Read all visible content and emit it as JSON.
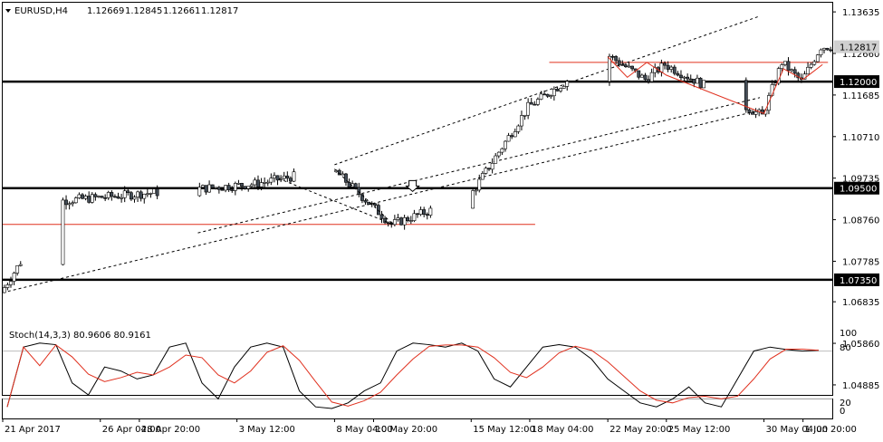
{
  "header": {
    "symbol": "EURUSD,H4",
    "open": "1.12669",
    "high": "1.12845",
    "low": "1.12661",
    "close": "1.12817"
  },
  "stoch": {
    "label": "Stoch(14,3,3) 80.9606 80.9161",
    "levels": [
      "100",
      "80",
      "20",
      "0"
    ]
  },
  "price_axis_ticks": [
    "1.13635",
    "1.12660",
    "1.11685",
    "1.10710",
    "1.09735",
    "1.08760",
    "1.07785",
    "1.06835",
    "1.05860",
    "1.04885"
  ],
  "price_badges": [
    {
      "label": "1.12817",
      "dark": false
    },
    {
      "label": "1.12000",
      "dark": true
    },
    {
      "label": "1.09500",
      "dark": true
    },
    {
      "label": "1.07350",
      "dark": true
    }
  ],
  "time_axis_ticks": [
    "21 Apr 2017",
    "26 Apr 04:00",
    "28 Apr 20:00",
    "3 May 12:00",
    "8 May 04:00",
    "10 May 20:00",
    "15 May 12:00",
    "18 May 04:00",
    "22 May 20:00",
    "25 May 12:00",
    "30 May 04:00",
    "1 Jun 20:00"
  ],
  "chart_data": {
    "type": "candlestick",
    "title": "EURUSD,H4",
    "ylim": [
      1.0465,
      1.1385
    ],
    "x_range": [
      "21 Apr 2017",
      "2 Jun 2017"
    ],
    "horizontal_levels": [
      1.12,
      1.095,
      1.0735
    ],
    "resistance_lines": [
      {
        "from": "21 Apr 2017",
        "to": "18 May 2017",
        "price": 1.0865
      },
      {
        "from": "19 May 2017",
        "to": "2 Jun 2017",
        "price": 1.1245
      }
    ],
    "channel_lines": [
      {
        "from": [
          "21 Apr 2017",
          1.0705
        ],
        "to": [
          "2 Jun 2017",
          1.1168
        ]
      },
      {
        "from": [
          "8 May 2017",
          1.1005
        ],
        "to": [
          "2 Jun 2017",
          1.1405
        ]
      }
    ],
    "key_points": [
      {
        "label": "open",
        "date": "21 Apr 2017",
        "price": 1.0705
      },
      {
        "date": "24 Apr 2017",
        "price": 1.092
      },
      {
        "date": "4 May 2017",
        "price": 1.096
      },
      {
        "date": "8 May 2017",
        "price": 1.0995
      },
      {
        "date": "11 May 2017",
        "price": 1.0865
      },
      {
        "date": "15 May 2017",
        "price": 1.093
      },
      {
        "date": "18 May 2017",
        "price": 1.114
      },
      {
        "date": "22 May 2017",
        "price": 1.1265
      },
      {
        "date": "24 May 2017",
        "price": 1.1205
      },
      {
        "date": "25 May 2017",
        "price": 1.124
      },
      {
        "date": "30 May 2017",
        "price": 1.112
      },
      {
        "date": "31 May 2017",
        "price": 1.1245
      },
      {
        "date": "1 Jun 2017",
        "price": 1.12
      },
      {
        "label": "close",
        "date": "2 Jun 2017",
        "price": 1.12817
      }
    ],
    "stochastic": {
      "name": "Stoch(14,3,3)",
      "main": 80.9606,
      "signal": 80.9161,
      "levels": [
        80,
        20
      ],
      "ylim": [
        0,
        100
      ]
    }
  }
}
